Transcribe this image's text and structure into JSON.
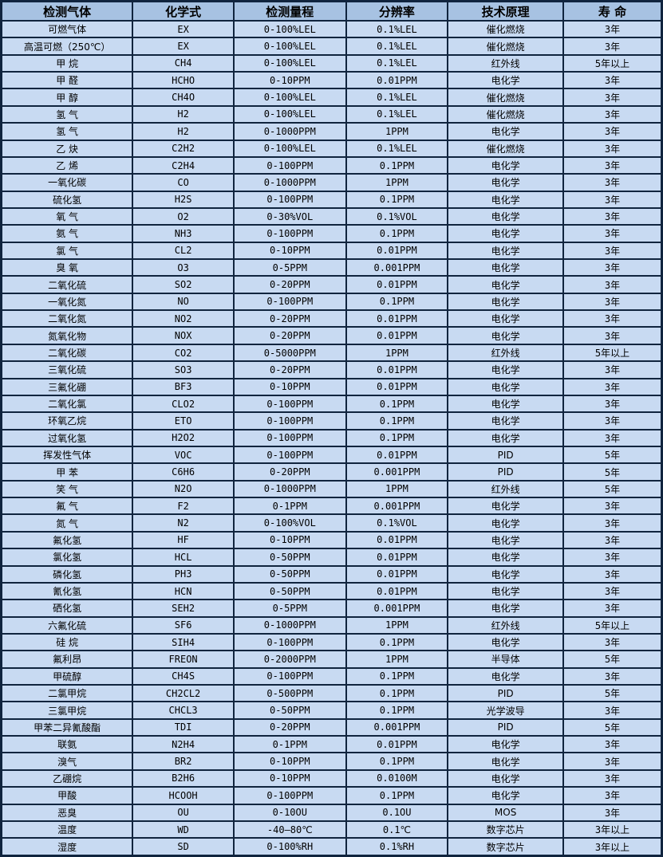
{
  "table": {
    "columns": [
      "检测气体",
      "化学式",
      "检测量程",
      "分辨率",
      "技术原理",
      "寿 命"
    ],
    "rows": [
      {
        "gas": "可燃气体",
        "formula": "EX",
        "range": "0-100%LEL",
        "resolution": "0.1%LEL",
        "principle": "催化燃烧",
        "life": "3年"
      },
      {
        "gas": "高温可燃（250℃）",
        "formula": "EX",
        "range": "0-100%LEL",
        "resolution": "0.1%LEL",
        "principle": "催化燃烧",
        "life": "3年"
      },
      {
        "gas": "甲 烷",
        "formula": "CH4",
        "range": "0-100%LEL",
        "resolution": "0.1%LEL",
        "principle": "红外线",
        "life": "5年以上"
      },
      {
        "gas": "甲 醛",
        "formula": "HCHO",
        "range": "0-10PPM",
        "resolution": "0.01PPM",
        "principle": "电化学",
        "life": "3年"
      },
      {
        "gas": "甲 醇",
        "formula": "CH4O",
        "range": "0-100%LEL",
        "resolution": "0.1%LEL",
        "principle": "催化燃烧",
        "life": "3年"
      },
      {
        "gas": "氢 气",
        "formula": "H2",
        "range": "0-100%LEL",
        "resolution": "0.1%LEL",
        "principle": "催化燃烧",
        "life": "3年"
      },
      {
        "gas": "氢 气",
        "formula": "H2",
        "range": "0-1000PPM",
        "resolution": "1PPM",
        "principle": "电化学",
        "life": "3年"
      },
      {
        "gas": "乙 炔",
        "formula": "C2H2",
        "range": "0-100%LEL",
        "resolution": "0.1%LEL",
        "principle": "催化燃烧",
        "life": "3年"
      },
      {
        "gas": "乙 烯",
        "formula": "C2H4",
        "range": "0-100PPM",
        "resolution": "0.1PPM",
        "principle": "电化学",
        "life": "3年"
      },
      {
        "gas": "一氧化碳",
        "formula": "CO",
        "range": "0-1000PPM",
        "resolution": "1PPM",
        "principle": "电化学",
        "life": "3年"
      },
      {
        "gas": "硫化氢",
        "formula": "H2S",
        "range": "0-100PPM",
        "resolution": "0.1PPM",
        "principle": "电化学",
        "life": "3年"
      },
      {
        "gas": "氧 气",
        "formula": "O2",
        "range": "0-30%VOL",
        "resolution": "0.1%VOL",
        "principle": "电化学",
        "life": "3年"
      },
      {
        "gas": "氨 气",
        "formula": "NH3",
        "range": "0-100PPM",
        "resolution": "0.1PPM",
        "principle": "电化学",
        "life": "3年"
      },
      {
        "gas": "氯 气",
        "formula": "CL2",
        "range": "0-10PPM",
        "resolution": "0.01PPM",
        "principle": "电化学",
        "life": "3年"
      },
      {
        "gas": "臭 氧",
        "formula": "O3",
        "range": "0-5PPM",
        "resolution": "0.001PPM",
        "principle": "电化学",
        "life": "3年"
      },
      {
        "gas": "二氧化硫",
        "formula": "SO2",
        "range": "0-20PPM",
        "resolution": "0.01PPM",
        "principle": "电化学",
        "life": "3年"
      },
      {
        "gas": "一氧化氮",
        "formula": "NO",
        "range": "0-100PPM",
        "resolution": "0.1PPM",
        "principle": "电化学",
        "life": "3年"
      },
      {
        "gas": "二氧化氮",
        "formula": "NO2",
        "range": "0-20PPM",
        "resolution": "0.01PPM",
        "principle": "电化学",
        "life": "3年"
      },
      {
        "gas": "氮氧化物",
        "formula": "NOX",
        "range": "0-20PPM",
        "resolution": "0.01PPM",
        "principle": "电化学",
        "life": "3年"
      },
      {
        "gas": "二氧化碳",
        "formula": "CO2",
        "range": "0-5000PPM",
        "resolution": "1PPM",
        "principle": "红外线",
        "life": "5年以上"
      },
      {
        "gas": "三氧化硫",
        "formula": "SO3",
        "range": "0-20PPM",
        "resolution": "0.01PPM",
        "principle": "电化学",
        "life": "3年"
      },
      {
        "gas": "三氟化硼",
        "formula": "BF3",
        "range": "0-10PPM",
        "resolution": "0.01PPM",
        "principle": "电化学",
        "life": "3年"
      },
      {
        "gas": "二氧化氯",
        "formula": "CLO2",
        "range": "0-100PPM",
        "resolution": "0.1PPM",
        "principle": "电化学",
        "life": "3年"
      },
      {
        "gas": "环氧乙烷",
        "formula": "ETO",
        "range": "0-100PPM",
        "resolution": "0.1PPM",
        "principle": "电化学",
        "life": "3年"
      },
      {
        "gas": "过氧化氢",
        "formula": "H2O2",
        "range": "0-100PPM",
        "resolution": "0.1PPM",
        "principle": "电化学",
        "life": "3年"
      },
      {
        "gas": "挥发性气体",
        "formula": "VOC",
        "range": "0-100PPM",
        "resolution": "0.01PPM",
        "principle": "PID",
        "life": "5年"
      },
      {
        "gas": "甲 苯",
        "formula": "C6H6",
        "range": "0-20PPM",
        "resolution": "0.001PPM",
        "principle": "PID",
        "life": "5年"
      },
      {
        "gas": "笑 气",
        "formula": "N2O",
        "range": "0-1000PPM",
        "resolution": "1PPM",
        "principle": "红外线",
        "life": "5年"
      },
      {
        "gas": "氟 气",
        "formula": "F2",
        "range": "0-1PPM",
        "resolution": "0.001PPM",
        "principle": "电化学",
        "life": "3年"
      },
      {
        "gas": "氮 气",
        "formula": "N2",
        "range": "0-100%VOL",
        "resolution": "0.1%VOL",
        "principle": "电化学",
        "life": "3年"
      },
      {
        "gas": "氟化氢",
        "formula": "HF",
        "range": "0-10PPM",
        "resolution": "0.01PPM",
        "principle": "电化学",
        "life": "3年"
      },
      {
        "gas": "氯化氢",
        "formula": "HCL",
        "range": "0-50PPM",
        "resolution": "0.01PPM",
        "principle": "电化学",
        "life": "3年"
      },
      {
        "gas": "磷化氢",
        "formula": "PH3",
        "range": "0-50PPM",
        "resolution": "0.01PPM",
        "principle": "电化学",
        "life": "3年"
      },
      {
        "gas": "氰化氢",
        "formula": "HCN",
        "range": "0-50PPM",
        "resolution": "0.01PPM",
        "principle": "电化学",
        "life": "3年"
      },
      {
        "gas": "硒化氢",
        "formula": "SEH2",
        "range": "0-5PPM",
        "resolution": "0.001PPM",
        "principle": "电化学",
        "life": "3年"
      },
      {
        "gas": "六氟化硫",
        "formula": "SF6",
        "range": "0-1000PPM",
        "resolution": "1PPM",
        "principle": "红外线",
        "life": "5年以上"
      },
      {
        "gas": "硅 烷",
        "formula": "SIH4",
        "range": "0-100PPM",
        "resolution": "0.1PPM",
        "principle": "电化学",
        "life": "3年"
      },
      {
        "gas": "氟利昂",
        "formula": "FREON",
        "range": "0-2000PPM",
        "resolution": "1PPM",
        "principle": "半导体",
        "life": "5年"
      },
      {
        "gas": "甲硫醇",
        "formula": "CH4S",
        "range": "0-100PPM",
        "resolution": "0.1PPM",
        "principle": "电化学",
        "life": "3年"
      },
      {
        "gas": "二氯甲烷",
        "formula": "CH2CL2",
        "range": "0-500PPM",
        "resolution": "0.1PPM",
        "principle": "PID",
        "life": "5年"
      },
      {
        "gas": "三氯甲烷",
        "formula": "CHCL3",
        "range": "0-50PPM",
        "resolution": "0.1PPM",
        "principle": "光学波导",
        "life": "3年"
      },
      {
        "gas": "甲苯二异氰酸酯",
        "formula": "TDI",
        "range": "0-20PPM",
        "resolution": "0.001PPM",
        "principle": "PID",
        "life": "5年"
      },
      {
        "gas": "联氨",
        "formula": "N2H4",
        "range": "0-1PPM",
        "resolution": "0.01PPM",
        "principle": "电化学",
        "life": "3年"
      },
      {
        "gas": "溴气",
        "formula": "BR2",
        "range": "0-10PPM",
        "resolution": "0.1PPM",
        "principle": "电化学",
        "life": "3年"
      },
      {
        "gas": "乙硼烷",
        "formula": "B2H6",
        "range": "0-10PPM",
        "resolution": "0.0100M",
        "principle": "电化学",
        "life": "3年"
      },
      {
        "gas": "甲酸",
        "formula": "HCOOH",
        "range": "0-100PPM",
        "resolution": "0.1PPM",
        "principle": "电化学",
        "life": "3年"
      },
      {
        "gas": "恶臭",
        "formula": "OU",
        "range": "0-10OU",
        "resolution": "0.1OU",
        "principle": "MOS",
        "life": "3年"
      },
      {
        "gas": "温度",
        "formula": "WD",
        "range": "-40—80℃",
        "resolution": "0.1℃",
        "principle": "数字芯片",
        "life": "3年以上"
      },
      {
        "gas": "湿度",
        "formula": "SD",
        "range": "0-100%RH",
        "resolution": "0.1%RH",
        "principle": "数字芯片",
        "life": "3年以上"
      }
    ]
  },
  "colors": {
    "header_bg": "#a7c2e2",
    "row_bg": "#c8daf2",
    "border": "#10243e",
    "text": "#000000"
  }
}
